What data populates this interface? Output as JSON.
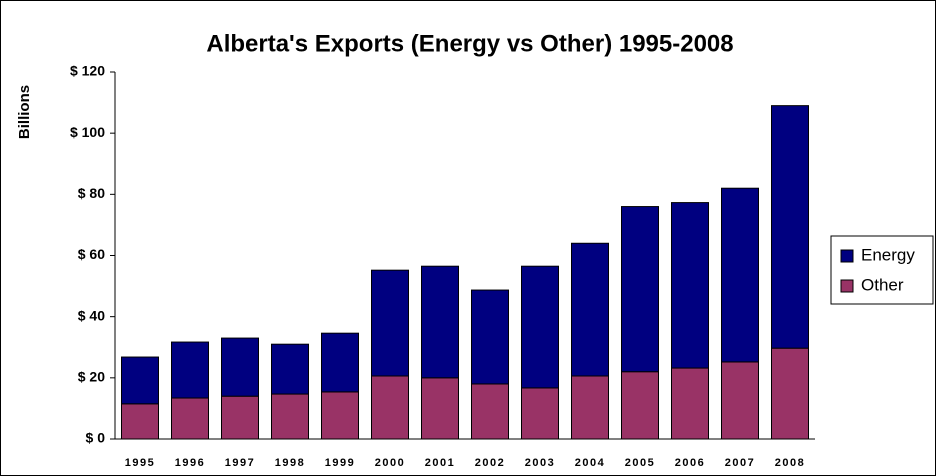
{
  "chart_data": {
    "type": "stacked_bar",
    "title": "Alberta's Exports (Energy vs Other) 1995-2008",
    "y_label": "Billions",
    "categories": [
      "1995",
      "1996",
      "1997",
      "1998",
      "1999",
      "2000",
      "2001",
      "2002",
      "2003",
      "2004",
      "2005",
      "2006",
      "2007",
      "2008"
    ],
    "series": [
      {
        "name": "Other",
        "color": "#993366",
        "values": [
          11.5,
          13.4,
          14,
          14.7,
          15.4,
          20.6,
          20,
          18,
          16.7,
          20.6,
          22,
          23.2,
          25.2,
          29.7
        ]
      },
      {
        "name": "Energy",
        "color": "#000080",
        "values": [
          15.3,
          18.3,
          19,
          16.3,
          19.2,
          34.6,
          36.5,
          30.7,
          39.8,
          43.4,
          54,
          54.1,
          56.8,
          79.3
        ]
      }
    ],
    "ylim": [
      0,
      120
    ],
    "yticks": [
      {
        "value": 0,
        "label": "$ 0"
      },
      {
        "value": 20,
        "label": "$ 20"
      },
      {
        "value": 40,
        "label": "$ 40"
      },
      {
        "value": 60,
        "label": "$ 60"
      },
      {
        "value": 80,
        "label": "$ 80"
      },
      {
        "value": 100,
        "label": "$ 100"
      },
      {
        "value": 120,
        "label": "$ 120"
      }
    ],
    "legend": "right"
  }
}
